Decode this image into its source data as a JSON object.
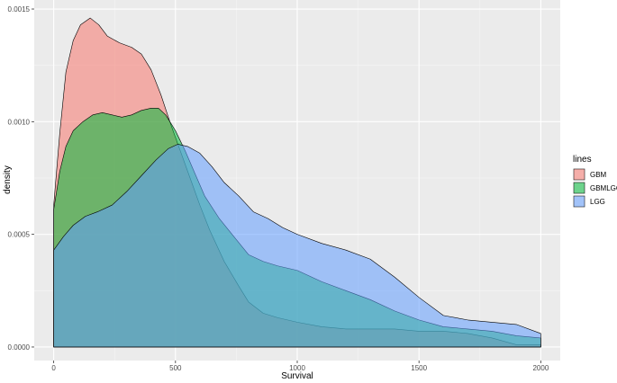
{
  "chart_data": {
    "type": "area",
    "xlabel": "Survival",
    "ylabel": "density",
    "xlim": [
      -80,
      2080
    ],
    "ylim": [
      -6e-05,
      0.00154
    ],
    "x_ticks": [
      {
        "value": 0,
        "label": "0"
      },
      {
        "value": 500,
        "label": "500"
      },
      {
        "value": 1000,
        "label": "1000"
      },
      {
        "value": 1500,
        "label": "1500"
      },
      {
        "value": 2000,
        "label": "2000"
      }
    ],
    "y_ticks": [
      {
        "value": 0,
        "label": "0.0000"
      },
      {
        "value": 0.0005,
        "label": "0.0005"
      },
      {
        "value": 0.001,
        "label": "0.0010"
      },
      {
        "value": 0.0015,
        "label": "0.0015"
      }
    ],
    "grid": true,
    "legend": {
      "title": "lines",
      "position": "right",
      "entries": [
        {
          "name": "GBM",
          "color": "#F8766D"
        },
        {
          "name": "GBMLGG",
          "color": "#00BA38"
        },
        {
          "name": "LGG",
          "color": "#619CFF"
        }
      ]
    },
    "series": [
      {
        "name": "GBM",
        "color": "#F8766D",
        "points": [
          [
            0,
            0.00063
          ],
          [
            25,
            0.00095
          ],
          [
            50,
            0.00122
          ],
          [
            80,
            0.00136
          ],
          [
            110,
            0.00143
          ],
          [
            150,
            0.00146
          ],
          [
            185,
            0.00143
          ],
          [
            220,
            0.00138
          ],
          [
            270,
            0.00135
          ],
          [
            320,
            0.00133
          ],
          [
            360,
            0.0013
          ],
          [
            400,
            0.00123
          ],
          [
            440,
            0.00112
          ],
          [
            480,
            0.00099
          ],
          [
            520,
            0.00087
          ],
          [
            560,
            0.00075
          ],
          [
            600,
            0.00063
          ],
          [
            640,
            0.00052
          ],
          [
            700,
            0.00038
          ],
          [
            760,
            0.00027
          ],
          [
            800,
            0.0002
          ],
          [
            860,
            0.00015
          ],
          [
            920,
            0.00013
          ],
          [
            1000,
            0.00011
          ],
          [
            1100,
            9e-05
          ],
          [
            1200,
            8e-05
          ],
          [
            1300,
            8e-05
          ],
          [
            1400,
            8e-05
          ],
          [
            1500,
            7e-05
          ],
          [
            1600,
            7e-05
          ],
          [
            1700,
            6e-05
          ],
          [
            1800,
            4e-05
          ],
          [
            1900,
            1e-05
          ],
          [
            2000,
            1e-05
          ]
        ]
      },
      {
        "name": "GBMLGG",
        "color": "#00BA38",
        "points": [
          [
            0,
            0.00061
          ],
          [
            25,
            0.00078
          ],
          [
            50,
            0.00089
          ],
          [
            80,
            0.00096
          ],
          [
            120,
            0.001
          ],
          [
            160,
            0.00103
          ],
          [
            200,
            0.00104
          ],
          [
            240,
            0.00103
          ],
          [
            280,
            0.00102
          ],
          [
            320,
            0.00103
          ],
          [
            360,
            0.00105
          ],
          [
            400,
            0.00106
          ],
          [
            430,
            0.00106
          ],
          [
            460,
            0.00103
          ],
          [
            500,
            0.00096
          ],
          [
            540,
            0.00087
          ],
          [
            580,
            0.00077
          ],
          [
            620,
            0.00067
          ],
          [
            680,
            0.00057
          ],
          [
            740,
            0.00049
          ],
          [
            800,
            0.00041
          ],
          [
            860,
            0.00038
          ],
          [
            920,
            0.00036
          ],
          [
            1000,
            0.00034
          ],
          [
            1100,
            0.00029
          ],
          [
            1200,
            0.00025
          ],
          [
            1300,
            0.00021
          ],
          [
            1400,
            0.00016
          ],
          [
            1500,
            0.00012
          ],
          [
            1600,
            9e-05
          ],
          [
            1700,
            8e-05
          ],
          [
            1800,
            7e-05
          ],
          [
            1900,
            5e-05
          ],
          [
            2000,
            4e-05
          ]
        ]
      },
      {
        "name": "LGG",
        "color": "#619CFF",
        "points": [
          [
            0,
            0.00043
          ],
          [
            40,
            0.00049
          ],
          [
            80,
            0.00054
          ],
          [
            130,
            0.00058
          ],
          [
            180,
            0.0006
          ],
          [
            240,
            0.00063
          ],
          [
            300,
            0.00069
          ],
          [
            360,
            0.00076
          ],
          [
            420,
            0.00083
          ],
          [
            470,
            0.00088
          ],
          [
            510,
            0.0009
          ],
          [
            550,
            0.00089
          ],
          [
            600,
            0.00086
          ],
          [
            650,
            0.0008
          ],
          [
            700,
            0.00073
          ],
          [
            760,
            0.00067
          ],
          [
            820,
            0.0006
          ],
          [
            880,
            0.00057
          ],
          [
            940,
            0.00053
          ],
          [
            1000,
            0.0005
          ],
          [
            1100,
            0.00046
          ],
          [
            1200,
            0.00043
          ],
          [
            1300,
            0.00039
          ],
          [
            1400,
            0.00031
          ],
          [
            1500,
            0.00022
          ],
          [
            1600,
            0.00014
          ],
          [
            1700,
            0.00012
          ],
          [
            1800,
            0.00011
          ],
          [
            1900,
            0.0001
          ],
          [
            2000,
            6e-05
          ]
        ]
      }
    ]
  }
}
